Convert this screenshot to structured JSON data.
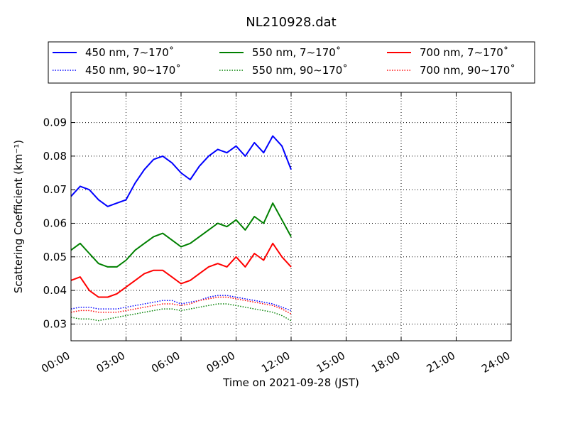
{
  "chart_data": {
    "type": "line",
    "title": "NL210928.dat",
    "xlabel": "Time on 2021-09-28 (JST)",
    "ylabel": "Scattering Coefficient (km⁻¹)",
    "xlim": [
      "00:00",
      "24:00"
    ],
    "ylim": [
      0.025,
      0.099
    ],
    "grid": true,
    "legend_position": "top",
    "x_ticks": [
      "00:00",
      "03:00",
      "06:00",
      "09:00",
      "12:00",
      "15:00",
      "18:00",
      "21:00",
      "24:00"
    ],
    "y_ticks": [
      "0.03",
      "0.04",
      "0.05",
      "0.06",
      "0.07",
      "0.08",
      "0.09"
    ],
    "series": [
      {
        "name": "450 nm, 7∼170˚",
        "color": "#0000ff",
        "style": "solid",
        "x": [
          "00:00",
          "00:30",
          "01:00",
          "01:30",
          "02:00",
          "02:30",
          "03:00",
          "03:30",
          "04:00",
          "04:30",
          "05:00",
          "05:30",
          "06:00",
          "06:30",
          "07:00",
          "07:30",
          "08:00",
          "08:30",
          "09:00",
          "09:30",
          "10:00",
          "10:30",
          "11:00",
          "11:30",
          "12:00"
        ],
        "values": [
          0.068,
          0.071,
          0.07,
          0.067,
          0.065,
          0.066,
          0.067,
          0.072,
          0.076,
          0.079,
          0.08,
          0.078,
          0.075,
          0.073,
          0.077,
          0.08,
          0.082,
          0.081,
          0.083,
          0.08,
          0.084,
          0.081,
          0.086,
          0.083,
          0.076
        ]
      },
      {
        "name": "550 nm, 7∼170˚",
        "color": "#008000",
        "style": "solid",
        "x": [
          "00:00",
          "00:30",
          "01:00",
          "01:30",
          "02:00",
          "02:30",
          "03:00",
          "03:30",
          "04:00",
          "04:30",
          "05:00",
          "05:30",
          "06:00",
          "06:30",
          "07:00",
          "07:30",
          "08:00",
          "08:30",
          "09:00",
          "09:30",
          "10:00",
          "10:30",
          "11:00",
          "11:30",
          "12:00"
        ],
        "values": [
          0.052,
          0.054,
          0.051,
          0.048,
          0.047,
          0.047,
          0.049,
          0.052,
          0.054,
          0.056,
          0.057,
          0.055,
          0.053,
          0.054,
          0.056,
          0.058,
          0.06,
          0.059,
          0.061,
          0.058,
          0.062,
          0.06,
          0.066,
          0.061,
          0.056
        ]
      },
      {
        "name": "700 nm, 7∼170˚",
        "color": "#ff0000",
        "style": "solid",
        "x": [
          "00:00",
          "00:30",
          "01:00",
          "01:30",
          "02:00",
          "02:30",
          "03:00",
          "03:30",
          "04:00",
          "04:30",
          "05:00",
          "05:30",
          "06:00",
          "06:30",
          "07:00",
          "07:30",
          "08:00",
          "08:30",
          "09:00",
          "09:30",
          "10:00",
          "10:30",
          "11:00",
          "11:30",
          "12:00"
        ],
        "values": [
          0.043,
          0.044,
          0.04,
          0.038,
          0.038,
          0.039,
          0.041,
          0.043,
          0.045,
          0.046,
          0.046,
          0.044,
          0.042,
          0.043,
          0.045,
          0.047,
          0.048,
          0.047,
          0.05,
          0.047,
          0.051,
          0.049,
          0.054,
          0.05,
          0.047
        ]
      },
      {
        "name": "450 nm, 90∼170˚",
        "color": "#0000ff",
        "style": "dotted",
        "x": [
          "00:00",
          "00:30",
          "01:00",
          "01:30",
          "02:00",
          "02:30",
          "03:00",
          "03:30",
          "04:00",
          "04:30",
          "05:00",
          "05:30",
          "06:00",
          "06:30",
          "07:00",
          "07:30",
          "08:00",
          "08:30",
          "09:00",
          "09:30",
          "10:00",
          "10:30",
          "11:00",
          "11:30",
          "12:00"
        ],
        "values": [
          0.0345,
          0.035,
          0.035,
          0.0345,
          0.0345,
          0.0345,
          0.035,
          0.0355,
          0.036,
          0.0365,
          0.037,
          0.037,
          0.036,
          0.0365,
          0.037,
          0.038,
          0.0385,
          0.0385,
          0.038,
          0.0375,
          0.037,
          0.0365,
          0.036,
          0.035,
          0.034
        ]
      },
      {
        "name": "550 nm, 90∼170˚",
        "color": "#008000",
        "style": "dotted",
        "x": [
          "00:00",
          "00:30",
          "01:00",
          "01:30",
          "02:00",
          "02:30",
          "03:00",
          "03:30",
          "04:00",
          "04:30",
          "05:00",
          "05:30",
          "06:00",
          "06:30",
          "07:00",
          "07:30",
          "08:00",
          "08:30",
          "09:00",
          "09:30",
          "10:00",
          "10:30",
          "11:00",
          "11:30",
          "12:00"
        ],
        "values": [
          0.032,
          0.0315,
          0.0315,
          0.031,
          0.0315,
          0.032,
          0.0325,
          0.033,
          0.0335,
          0.034,
          0.0345,
          0.0345,
          0.034,
          0.0345,
          0.035,
          0.0355,
          0.036,
          0.036,
          0.0355,
          0.035,
          0.0345,
          0.034,
          0.0335,
          0.0325,
          0.031
        ]
      },
      {
        "name": "700 nm, 90∼170˚",
        "color": "#ff0000",
        "style": "dotted",
        "x": [
          "00:00",
          "00:30",
          "01:00",
          "01:30",
          "02:00",
          "02:30",
          "03:00",
          "03:30",
          "04:00",
          "04:30",
          "05:00",
          "05:30",
          "06:00",
          "06:30",
          "07:00",
          "07:30",
          "08:00",
          "08:30",
          "09:00",
          "09:30",
          "10:00",
          "10:30",
          "11:00",
          "11:30",
          "12:00"
        ],
        "values": [
          0.0335,
          0.034,
          0.034,
          0.0335,
          0.0335,
          0.0335,
          0.034,
          0.0345,
          0.035,
          0.0355,
          0.036,
          0.036,
          0.0355,
          0.036,
          0.037,
          0.0375,
          0.038,
          0.038,
          0.0375,
          0.037,
          0.0365,
          0.036,
          0.0355,
          0.0345,
          0.033
        ]
      }
    ]
  }
}
